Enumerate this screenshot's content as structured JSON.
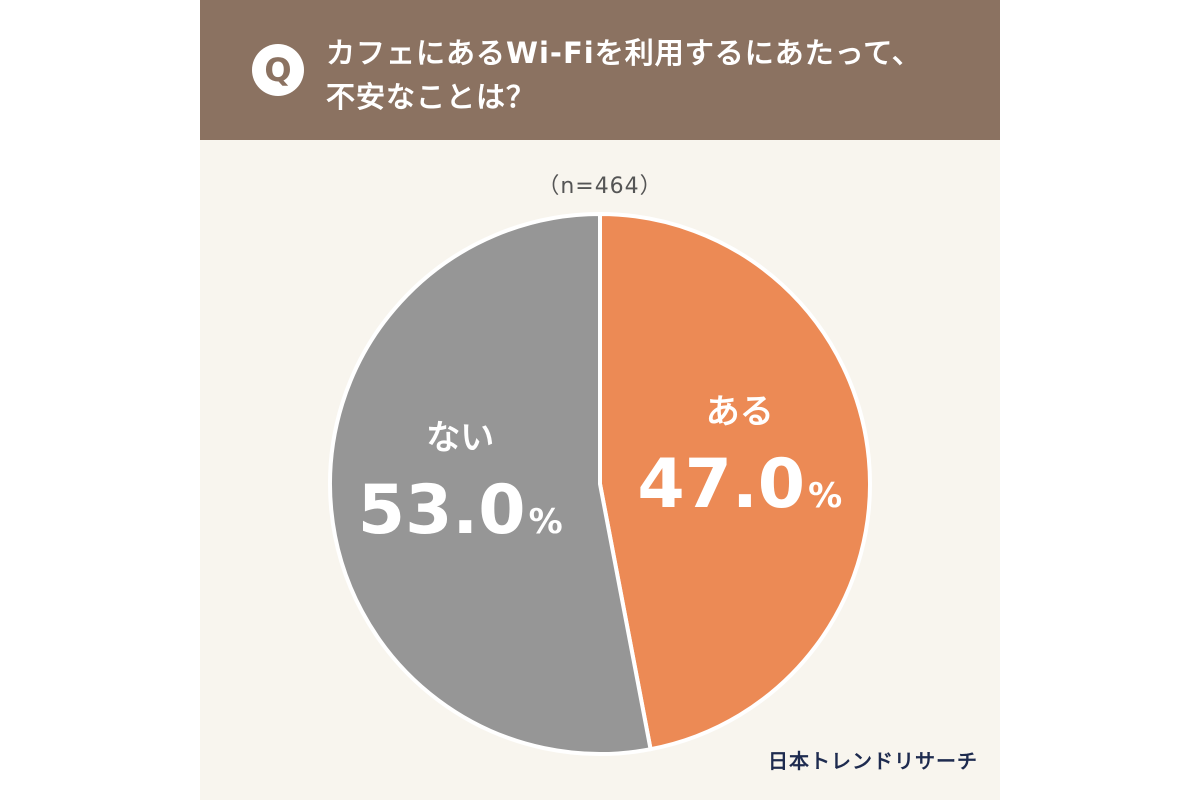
{
  "header": {
    "badge": "Q",
    "question_line1": "カフェにあるWi-Fiを利用するにあたって、",
    "question_line2": "不安なことは？"
  },
  "sample_size": "（n=464）",
  "chart_data": {
    "type": "pie",
    "slices": [
      {
        "label": "ある",
        "value": 47.0,
        "display": "47.0",
        "unit": "%",
        "color": "#ec8a55"
      },
      {
        "label": "ない",
        "value": 53.0,
        "display": "53.0",
        "unit": "%",
        "color": "#969696"
      }
    ],
    "start": "12 o'clock",
    "direction": "clockwise"
  },
  "brand": "日本トレンドリサーチ",
  "colors": {
    "header_bg": "#8b7261",
    "card_bg": "#f8f5ee",
    "slice_separator": "#ffffff",
    "brand_text": "#1e2b4f"
  }
}
